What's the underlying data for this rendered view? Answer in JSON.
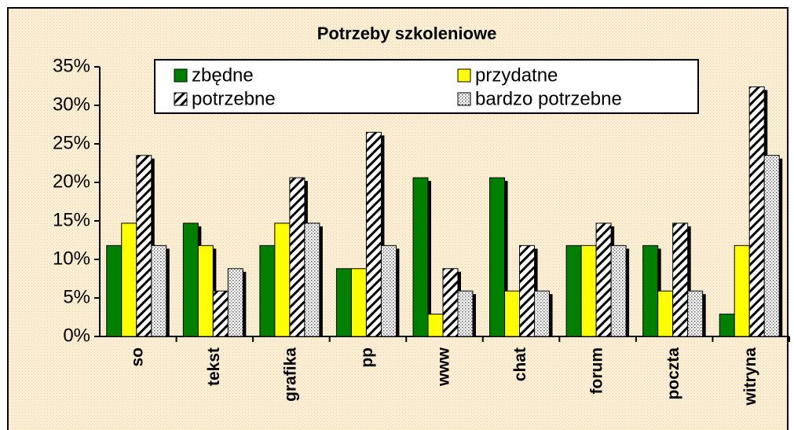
{
  "chart_data": {
    "type": "bar",
    "title": "Potrzeby szkoleniowe",
    "categories": [
      "so",
      "tekst",
      "grafika",
      "pp",
      "www",
      "chat",
      "forum",
      "poczta",
      "witryna"
    ],
    "series": [
      {
        "name": "zbędne",
        "color": "#008000",
        "pattern": "solid",
        "values": [
          11.8,
          14.7,
          11.8,
          8.8,
          20.6,
          20.6,
          11.8,
          11.8,
          2.9
        ]
      },
      {
        "name": "przydatne",
        "color": "#ffff00",
        "pattern": "solid",
        "values": [
          14.7,
          11.8,
          14.7,
          8.8,
          2.9,
          5.9,
          11.8,
          5.9,
          11.8
        ]
      },
      {
        "name": "potrzebne",
        "color": "#ffffff",
        "pattern": "stripes",
        "values": [
          23.5,
          5.9,
          20.6,
          26.5,
          8.8,
          11.8,
          14.7,
          14.7,
          32.4
        ]
      },
      {
        "name": "bardzo potrzebne",
        "color": "#ffffff",
        "pattern": "dots",
        "values": [
          11.8,
          8.8,
          14.7,
          11.8,
          5.9,
          5.9,
          11.8,
          5.9,
          23.5
        ]
      }
    ],
    "ylim": [
      0,
      35
    ],
    "yticks": [
      {
        "value": 0,
        "label": "0%"
      },
      {
        "value": 5,
        "label": "5%"
      },
      {
        "value": 10,
        "label": "10%"
      },
      {
        "value": 15,
        "label": "15%"
      },
      {
        "value": 20,
        "label": "20%"
      },
      {
        "value": 25,
        "label": "25%"
      },
      {
        "value": 30,
        "label": "30%"
      },
      {
        "value": 35,
        "label": "35%"
      }
    ],
    "legend": "top",
    "grid": false
  }
}
